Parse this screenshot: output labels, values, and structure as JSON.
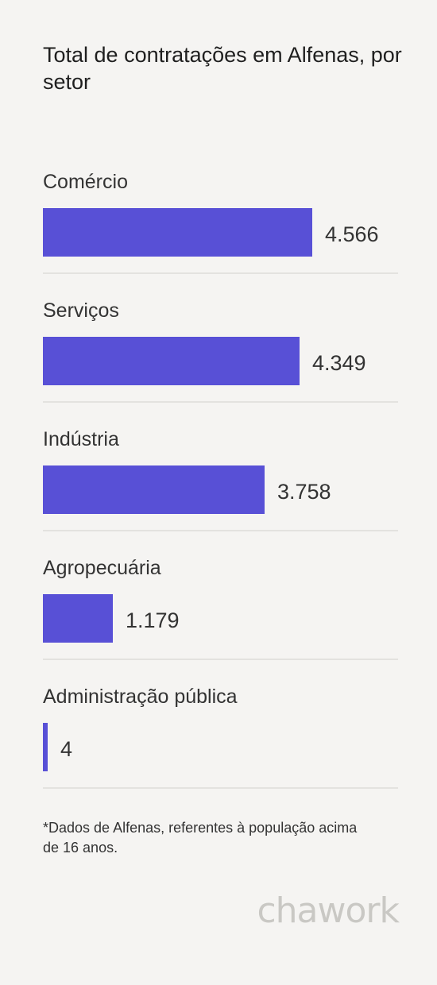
{
  "chart_data": {
    "type": "bar",
    "orientation": "horizontal",
    "title": "Total de contratações em Alfenas, por setor",
    "categories": [
      "Comércio",
      "Serviços",
      "Indústria",
      "Agropecuária",
      "Administração pública"
    ],
    "values": [
      4566,
      4349,
      3758,
      1179,
      4
    ],
    "value_labels": [
      "4.566",
      "4.349",
      "3.758",
      "1.179",
      "4"
    ],
    "bar_color": "#5850d6",
    "grid": false,
    "legend": "none"
  },
  "footnote": "*Dados de Alfenas, referentes à população acima de 16 anos.",
  "brand": {
    "logo_text": "chawork",
    "logo_color": "#c9c8c4"
  }
}
